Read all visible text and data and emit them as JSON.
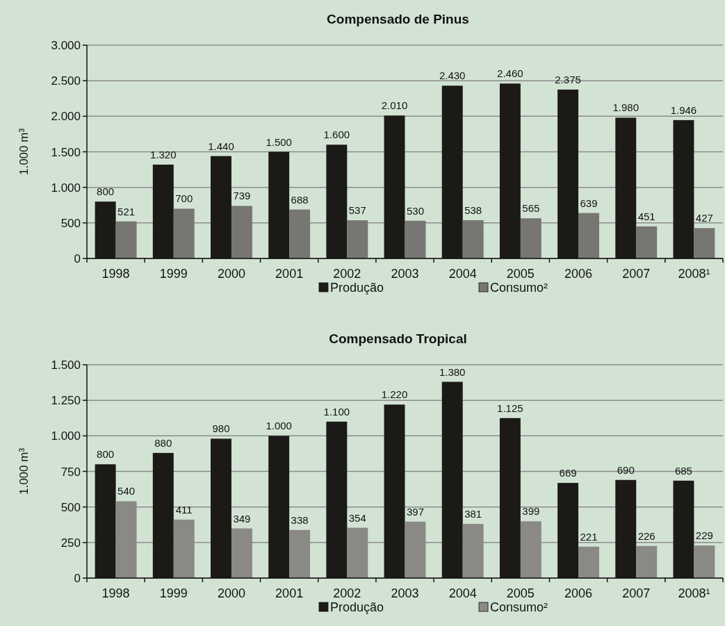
{
  "chart_data": [
    {
      "type": "bar",
      "title": "Compensado de Pinus",
      "ylabel": "1.000 m³",
      "categories": [
        "1998",
        "1999",
        "2000",
        "2001",
        "2002",
        "2003",
        "2004",
        "2005",
        "2006",
        "2007",
        "2008¹"
      ],
      "series": [
        {
          "name": "Produção",
          "color": "#1c1a17",
          "values": [
            800,
            1320,
            1440,
            1500,
            1600,
            2010,
            2430,
            2460,
            2375,
            1980,
            1946
          ],
          "value_labels": [
            "800",
            "1.320",
            "1.440",
            "1.500",
            "1.600",
            "2.010",
            "2.430",
            "2.460",
            "2.375",
            "1.980",
            "1.946"
          ]
        },
        {
          "name": "Consumo²",
          "color": "#777672",
          "values": [
            521,
            700,
            739,
            688,
            537,
            530,
            538,
            565,
            639,
            451,
            427
          ],
          "value_labels": [
            "521",
            "700",
            "739",
            "688",
            "537",
            "530",
            "538",
            "565",
            "639",
            "451",
            "427"
          ]
        }
      ],
      "ylim": [
        0,
        3000
      ],
      "yticks": [
        0,
        500,
        {
          "value": 1000,
          "label": "1.000"
        },
        {
          "value": 1500,
          "label": "1.500"
        },
        {
          "value": 2000,
          "label": "2.000"
        },
        {
          "value": 2500,
          "label": "2.500"
        },
        {
          "value": 3000,
          "label": "3.000"
        }
      ],
      "grid": "y",
      "legend": "bottom"
    },
    {
      "type": "bar",
      "title": "Compensado Tropical",
      "ylabel": "1.000 m³",
      "categories": [
        "1998",
        "1999",
        "2000",
        "2001",
        "2002",
        "2003",
        "2004",
        "2005",
        "2006",
        "2007",
        "2008¹"
      ],
      "series": [
        {
          "name": "Produção",
          "color": "#1c1a17",
          "values": [
            800,
            880,
            980,
            1000,
            1100,
            1220,
            1380,
            1125,
            669,
            690,
            685
          ],
          "value_labels": [
            "800",
            "880",
            "980",
            "1.000",
            "1.100",
            "1.220",
            "1.380",
            "1.125",
            "669",
            "690",
            "685"
          ]
        },
        {
          "name": "Consumo²",
          "color": "#8a8986",
          "values": [
            540,
            411,
            349,
            338,
            354,
            397,
            381,
            399,
            221,
            226,
            229
          ],
          "value_labels": [
            "540",
            "411",
            "349",
            "338",
            "354",
            "397",
            "381",
            "399",
            "221",
            "226",
            "229"
          ]
        }
      ],
      "ylim": [
        0,
        1500
      ],
      "yticks": [
        0,
        250,
        500,
        750,
        {
          "value": 1000,
          "label": "1.000"
        },
        {
          "value": 1250,
          "label": "1.250"
        },
        {
          "value": 1500,
          "label": "1.500"
        }
      ],
      "grid": "y",
      "legend": "bottom"
    }
  ]
}
